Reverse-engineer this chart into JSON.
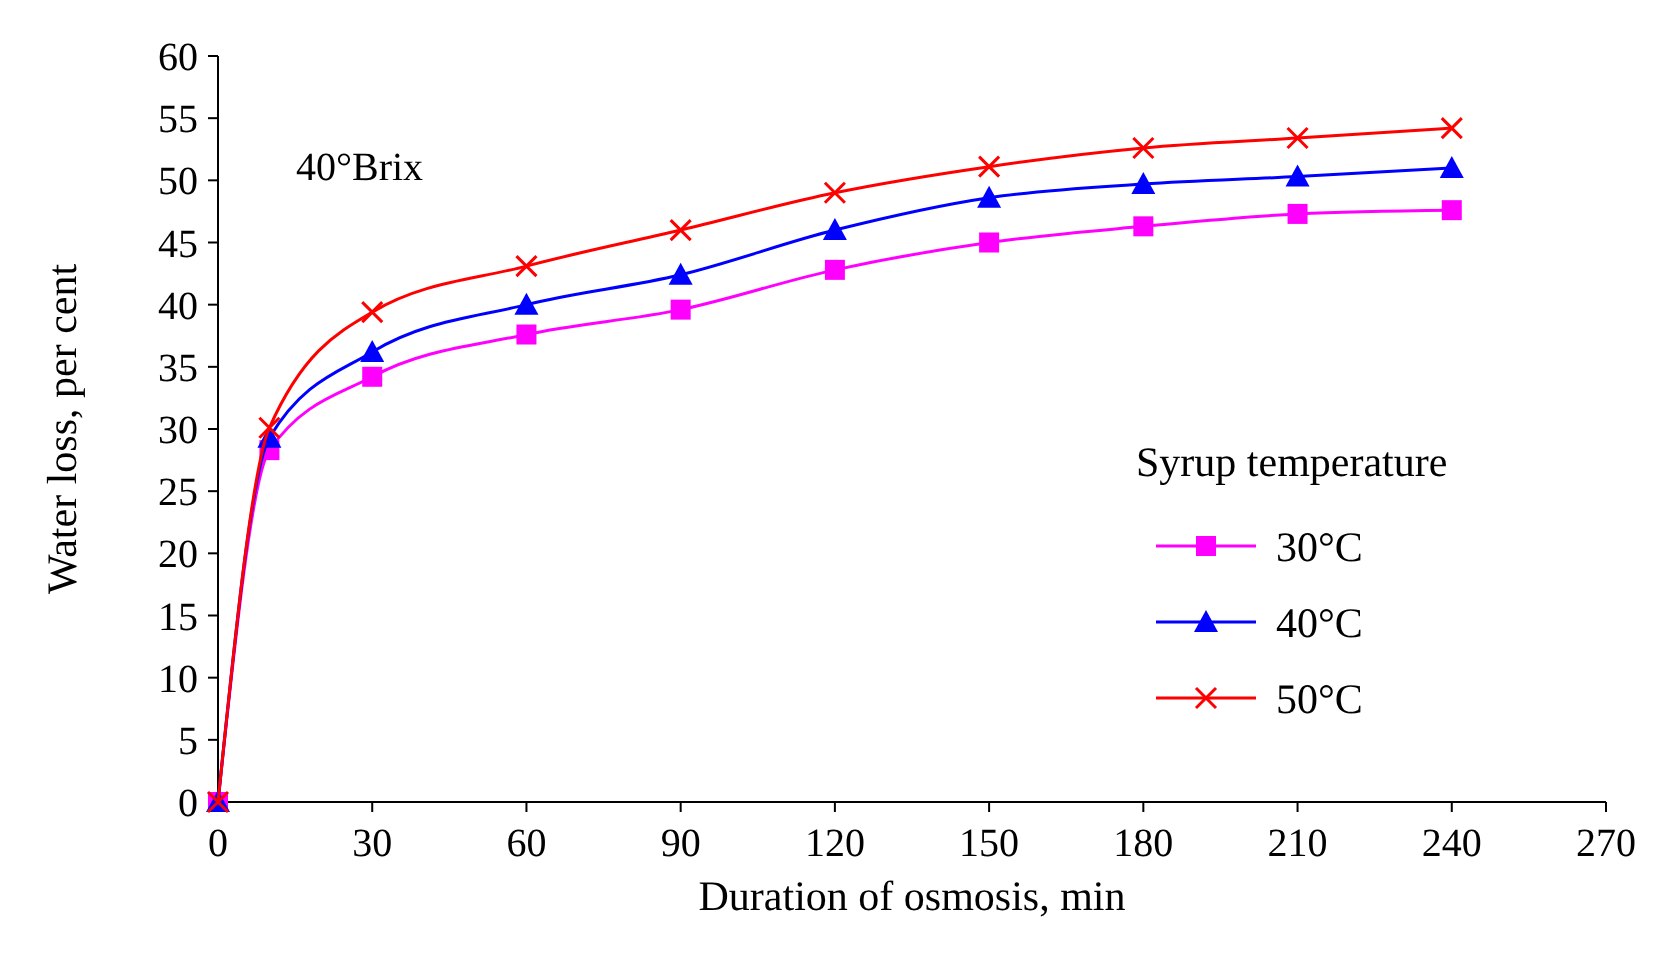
{
  "chart_data": {
    "type": "line",
    "xlabel": "Duration of osmosis,  min",
    "ylabel": "Water loss, per cent",
    "legend_title": "Syrup temperature",
    "annotations": [
      "40°Brix"
    ],
    "x": [
      0,
      10,
      30,
      60,
      90,
      120,
      150,
      180,
      210,
      240
    ],
    "series": [
      {
        "name": "30°C",
        "color": "#ff00ff",
        "marker": "square",
        "values": [
          0,
          28.3,
          34.2,
          37.6,
          39.6,
          42.8,
          45.0,
          46.3,
          47.3,
          47.6
        ]
      },
      {
        "name": "40°C",
        "color": "#0000ff",
        "marker": "triangle",
        "values": [
          0,
          29.3,
          36.2,
          40.0,
          42.4,
          46.0,
          48.6,
          49.7,
          50.3,
          51.0
        ]
      },
      {
        "name": "50°C",
        "color": "#ff0000",
        "marker": "cross",
        "values": [
          0,
          30.1,
          39.4,
          43.1,
          46.0,
          49.0,
          51.1,
          52.6,
          53.4,
          54.2
        ]
      }
    ],
    "xlim": [
      0,
      270
    ],
    "xticks": [
      0,
      30,
      60,
      90,
      120,
      150,
      180,
      210,
      240,
      270
    ],
    "ylim": [
      0,
      60
    ],
    "yticks": [
      0,
      5,
      10,
      15,
      20,
      25,
      30,
      35,
      40,
      45,
      50,
      55,
      60
    ],
    "grid": false,
    "legend": "right"
  }
}
